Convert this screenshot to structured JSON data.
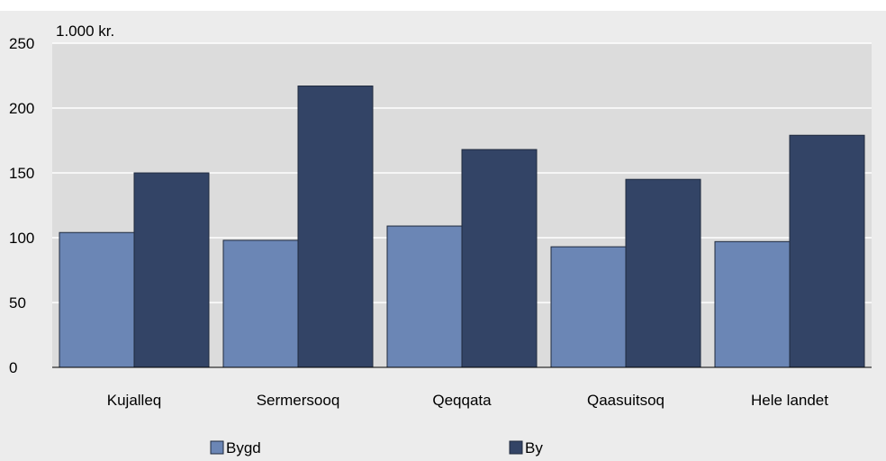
{
  "chart_data": {
    "type": "bar",
    "unit_label": "1.000 kr.",
    "categories": [
      "Kujalleq",
      "Sermersooq",
      "Qeqqata",
      "Qaasuitsoq",
      "Hele landet"
    ],
    "series": [
      {
        "name": "Bygd",
        "color": "#6b86b5",
        "values": [
          104,
          98,
          109,
          93,
          97
        ]
      },
      {
        "name": "By",
        "color": "#334466",
        "values": [
          150,
          217,
          168,
          145,
          179
        ]
      }
    ],
    "ylim": [
      0,
      250
    ],
    "yticks": [
      0,
      50,
      100,
      150,
      200,
      250
    ],
    "grid": true,
    "legend_position": "bottom"
  }
}
